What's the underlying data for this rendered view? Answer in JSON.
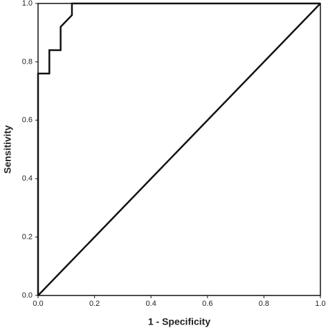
{
  "chart_data": {
    "type": "line",
    "x_label": "1 - Specificity",
    "y_label": "Sensitivity",
    "xlim": [
      0,
      1
    ],
    "ylim": [
      0,
      1
    ],
    "xticks": [
      {
        "value": 0,
        "label": "0.0"
      },
      0.2,
      0.4,
      0.6,
      0.8,
      {
        "value": 1,
        "label": "1.0"
      }
    ],
    "yticks": [
      {
        "value": 0,
        "label": "0.0"
      },
      0.2,
      0.4,
      0.6,
      0.8,
      {
        "value": 1,
        "label": "1.0"
      }
    ],
    "series": [
      {
        "color": "#111111",
        "x": [
          0,
          0,
          0.04,
          0.04,
          0.08,
          0.08,
          0.12,
          0.12,
          1
        ],
        "values": [
          0,
          0.76,
          0.76,
          0.84,
          0.84,
          0.92,
          0.96,
          1,
          1
        ]
      },
      {
        "color": "#111111",
        "x": [
          0,
          1
        ],
        "values": [
          0,
          1
        ]
      }
    ]
  }
}
